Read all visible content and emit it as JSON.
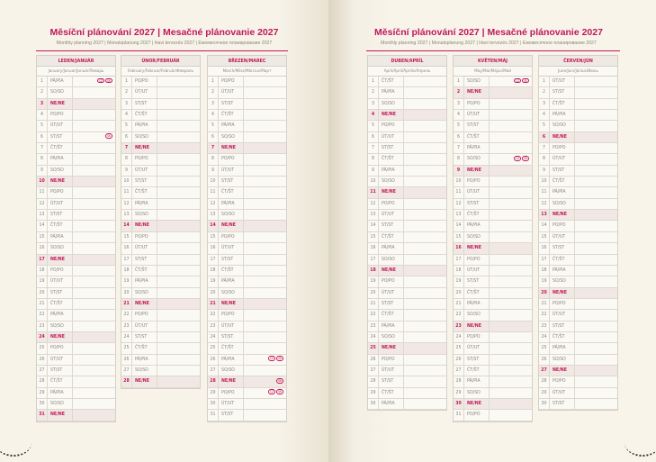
{
  "title": "Měsíční plánování 2027 | Mesačné plánovanie 2027",
  "subtitle": "Monthly planning 2027 | Monatsplanung 2027 | Havi tervezés 2027 | Ежемесячное планирование 2027",
  "weekdays": [
    "PO/PO",
    "ÚT/UT",
    "ST/ST",
    "ČT/ŠT",
    "PÁ/PIA",
    "SO/SO",
    "NE/NE"
  ],
  "months": [
    {
      "name": "LEDEN/JANUÁR",
      "subtitle": "January/Januar/Január/Январь",
      "first_weekday": 4,
      "length": 31,
      "holidays": {
        "1": [
          "CZ",
          "SK"
        ],
        "6": [
          "SK"
        ]
      }
    },
    {
      "name": "ÚNOR/FEBRUÁR",
      "subtitle": "February/Februar/Február/Февраль",
      "first_weekday": 0,
      "length": 28,
      "holidays": {}
    },
    {
      "name": "BŘEZEN/MAREC",
      "subtitle": "March/März/Március/Март",
      "first_weekday": 0,
      "length": 31,
      "holidays": {
        "26": [
          "CZ",
          "SK"
        ],
        "28": [
          "SK"
        ],
        "29": [
          "CZ",
          "SK"
        ]
      }
    },
    {
      "name": "DUBEN/APRÍL",
      "subtitle": "April/April/Április/Апрель",
      "first_weekday": 3,
      "length": 30,
      "holidays": {}
    },
    {
      "name": "KVĚTEN/MÁJ",
      "subtitle": "May/Mai/Május/Май",
      "first_weekday": 5,
      "length": 31,
      "holidays": {
        "1": [
          "CZ",
          "SK"
        ],
        "8": [
          "CZ",
          "SK"
        ]
      }
    },
    {
      "name": "ČERVEN/JÚN",
      "subtitle": "June/Juni/Június/Июнь",
      "first_weekday": 1,
      "length": 30,
      "holidays": {}
    }
  ],
  "colors": {
    "accent": "#c0185a",
    "background": "#f8f4ea"
  }
}
